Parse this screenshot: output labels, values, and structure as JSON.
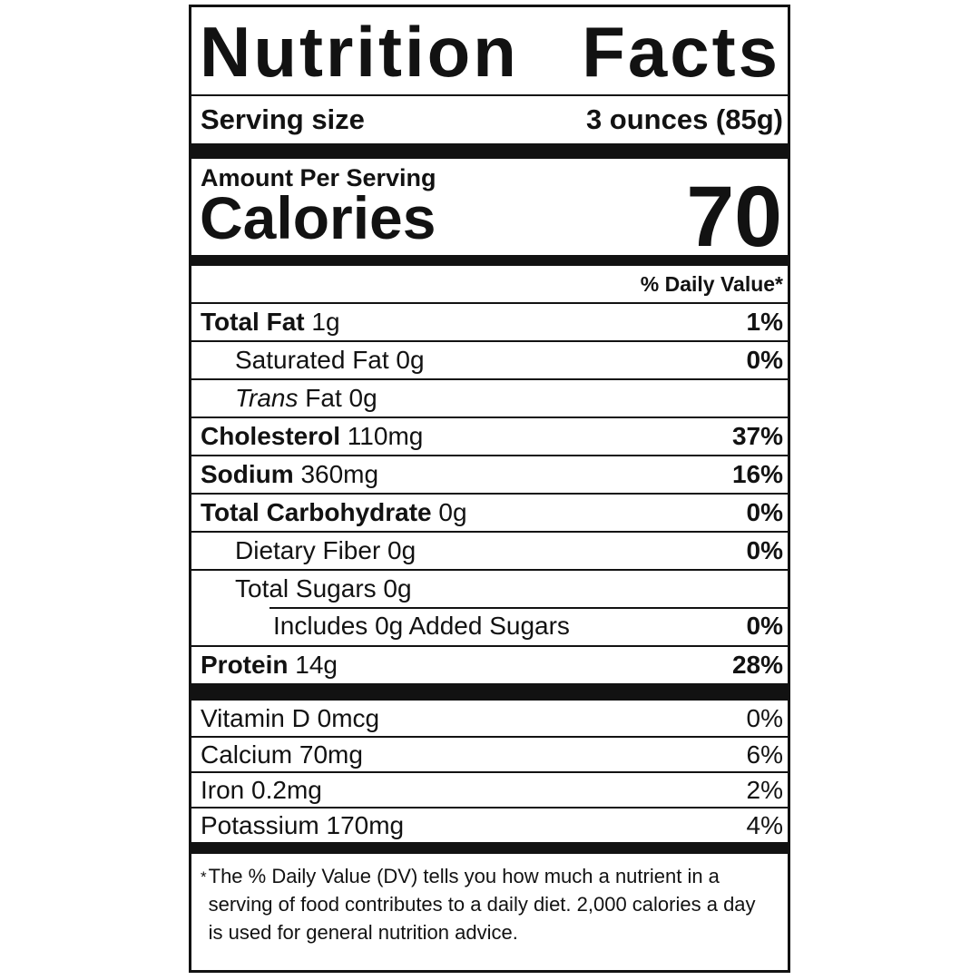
{
  "label": {
    "title": "Nutrition Facts",
    "serving_row": {
      "label": "Serving size",
      "value": "3 ounces (85g)"
    },
    "amount_per_serving": "Amount Per Serving",
    "calories_row": {
      "label": "Calories",
      "value": "70"
    },
    "daily_value_header": "% Daily Value*",
    "nutrient_rows": [
      {
        "bold": "Total Fat",
        "normal": " 1g",
        "percent": "1%",
        "percent_bold": true,
        "indent": 0
      },
      {
        "normal": "Saturated Fat 0g",
        "percent": "0%",
        "percent_bold": true,
        "indent": 1
      },
      {
        "italic": "Trans",
        "normal": " Fat 0g",
        "percent": "",
        "percent_bold": false,
        "indent": 1
      },
      {
        "bold": "Cholesterol",
        "normal": " 110mg",
        "percent": "37%",
        "percent_bold": true,
        "indent": 0
      },
      {
        "bold": "Sodium",
        "normal": " 360mg",
        "percent": "16%",
        "percent_bold": true,
        "indent": 0
      },
      {
        "bold": "Total Carbohydrate",
        "normal": " 0g",
        "percent": "0%",
        "percent_bold": true,
        "indent": 0
      },
      {
        "normal": "Dietary Fiber 0g",
        "percent": "0%",
        "percent_bold": true,
        "indent": 1
      },
      {
        "normal": "Total Sugars 0g",
        "percent": "",
        "percent_bold": false,
        "indent": 1
      },
      {
        "normal": "Includes 0g Added Sugars",
        "percent": "0%",
        "percent_bold": true,
        "indent": 2,
        "separator_indented": true
      },
      {
        "bold": "Protein",
        "normal": " 14g",
        "percent": "28%",
        "percent_bold": true,
        "indent": 0
      }
    ],
    "micronutrient_rows": [
      {
        "normal": "Vitamin D 0mcg",
        "percent": "0%"
      },
      {
        "normal": "Calcium 70mg",
        "percent": "6%"
      },
      {
        "normal": "Iron 0.2mg",
        "percent": "2%"
      },
      {
        "normal": "Potassium 170mg",
        "percent": "4%"
      }
    ],
    "footnote": {
      "marker": "*",
      "text": "The % Daily Value (DV) tells you how much a nutrient in a serving of food contributes to a daily diet. 2,000 calories a day is used for general nutrition advice."
    },
    "colors": {
      "ink": "#121212",
      "background": "#ffffff"
    }
  }
}
